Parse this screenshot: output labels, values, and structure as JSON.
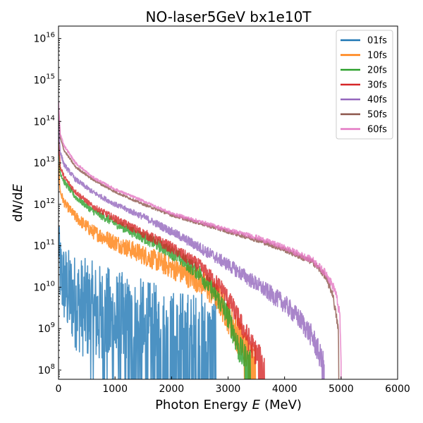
{
  "chart_data": {
    "type": "line",
    "title": "NO-laser5GeV bx1e10T",
    "xlabel": "Photon Energy",
    "xlabel_var": "E",
    "xlabel_unit": "(MeV)",
    "ylabel_prefix": "d",
    "ylabel_num": "N",
    "ylabel_mid": "/d",
    "ylabel_den": "E",
    "x_unit": "MeV",
    "xlim": [
      0,
      6000
    ],
    "xticks": [
      0,
      1000,
      2000,
      3000,
      4000,
      5000,
      6000
    ],
    "xtick_labels": [
      "0",
      "1000",
      "2000",
      "3000",
      "4000",
      "5000",
      "6000"
    ],
    "yscale": "log",
    "ylim": [
      60000000.0,
      2e+16
    ],
    "ytick_exponents": [
      8,
      9,
      10,
      11,
      12,
      13,
      14,
      15,
      16
    ],
    "ytick_base": "10",
    "grid": false,
    "legend_position": "top-right",
    "series": [
      {
        "name": "01fs",
        "color": "#1f77b4",
        "cutoff": 2800,
        "floor": 170000000.0,
        "noise": 0.8,
        "points": [
          [
            0,
            150000000000.0
          ],
          [
            20,
            30000000000.0
          ],
          [
            60,
            16000000000.0
          ],
          [
            150,
            8000000000.0
          ],
          [
            300,
            4500000000.0
          ],
          [
            500,
            2800000000.0
          ],
          [
            700,
            2000000000.0
          ],
          [
            1000,
            1200000000.0
          ],
          [
            1200,
            800000000.0
          ],
          [
            1500,
            500000000.0
          ],
          [
            1800,
            300000000.0
          ],
          [
            2000,
            220000000.0
          ],
          [
            2500,
            180000000.0
          ],
          [
            2800,
            170000000.0
          ]
        ]
      },
      {
        "name": "10fs",
        "color": "#ff7f0e",
        "cutoff": 3500,
        "floor": 120000000.0,
        "noise": 0.25,
        "points": [
          [
            0,
            10000000000000.0
          ],
          [
            30,
            2000000000000.0
          ],
          [
            100,
            1100000000000.0
          ],
          [
            300,
            500000000000.0
          ],
          [
            600,
            220000000000.0
          ],
          [
            1000,
            120000000000.0
          ],
          [
            1500,
            60000000000.0
          ],
          [
            2000,
            30000000000.0
          ],
          [
            2500,
            14000000000.0
          ],
          [
            2800,
            6000000000.0
          ],
          [
            3000,
            2000000000.0
          ],
          [
            3200,
            600000000.0
          ],
          [
            3300,
            300000000.0
          ],
          [
            3500,
            120000000.0
          ]
        ]
      },
      {
        "name": "20fs",
        "color": "#2ca02c",
        "cutoff": 3400,
        "floor": 120000000.0,
        "noise": 0.18,
        "points": [
          [
            0,
            30000000000000.0
          ],
          [
            30,
            6000000000000.0
          ],
          [
            100,
            3500000000000.0
          ],
          [
            300,
            1500000000000.0
          ],
          [
            600,
            700000000000.0
          ],
          [
            1000,
            350000000000.0
          ],
          [
            1500,
            160000000000.0
          ],
          [
            2000,
            70000000000.0
          ],
          [
            2500,
            22000000000.0
          ],
          [
            2800,
            6000000000.0
          ],
          [
            3000,
            2000000000.0
          ],
          [
            3100,
            800000000.0
          ],
          [
            3200,
            300000000.0
          ],
          [
            3400,
            120000000.0
          ]
        ]
      },
      {
        "name": "30fs",
        "color": "#d62728",
        "cutoff": 3650,
        "floor": 120000000.0,
        "noise": 0.16,
        "points": [
          [
            0,
            40000000000000.0
          ],
          [
            30,
            8000000000000.0
          ],
          [
            100,
            4500000000000.0
          ],
          [
            300,
            2000000000000.0
          ],
          [
            600,
            900000000000.0
          ],
          [
            1000,
            450000000000.0
          ],
          [
            1500,
            200000000000.0
          ],
          [
            2000,
            90000000000.0
          ],
          [
            2500,
            32000000000.0
          ],
          [
            2900,
            9000000000.0
          ],
          [
            3100,
            3000000000.0
          ],
          [
            3300,
            800000000.0
          ],
          [
            3500,
            250000000.0
          ],
          [
            3650,
            120000000.0
          ]
        ]
      },
      {
        "name": "40fs",
        "color": "#9467bd",
        "cutoff": 4700,
        "floor": 120000000.0,
        "noise": 0.15,
        "points": [
          [
            0,
            120000000000000.0
          ],
          [
            30,
            18000000000000.0
          ],
          [
            100,
            9000000000000.0
          ],
          [
            300,
            4000000000000.0
          ],
          [
            600,
            2000000000000.0
          ],
          [
            1000,
            1000000000000.0
          ],
          [
            1500,
            500000000000.0
          ],
          [
            2000,
            220000000000.0
          ],
          [
            2500,
            90000000000.0
          ],
          [
            3000,
            35000000000.0
          ],
          [
            3500,
            12000000000.0
          ],
          [
            4000,
            4000000000.0
          ],
          [
            4300,
            1500000000.0
          ],
          [
            4500,
            600000000.0
          ],
          [
            4700,
            120000000.0
          ]
        ]
      },
      {
        "name": "50fs",
        "color": "#8c564b",
        "cutoff": 4960,
        "floor": 120000000.0,
        "noise": 0.07,
        "points": [
          [
            0,
            200000000000000.0
          ],
          [
            30,
            40000000000000.0
          ],
          [
            100,
            20000000000000.0
          ],
          [
            300,
            8000000000000.0
          ],
          [
            600,
            4000000000000.0
          ],
          [
            1000,
            2000000000000.0
          ],
          [
            1500,
            1000000000000.0
          ],
          [
            2000,
            550000000000.0
          ],
          [
            2500,
            350000000000.0
          ],
          [
            3000,
            220000000000.0
          ],
          [
            3500,
            140000000000.0
          ],
          [
            4000,
            80000000000.0
          ],
          [
            4500,
            40000000000.0
          ],
          [
            4700,
            20000000000.0
          ],
          [
            4850,
            7000000000.0
          ],
          [
            4950,
            1000000000.0
          ],
          [
            4960,
            120000000.0
          ]
        ]
      },
      {
        "name": "60fs",
        "color": "#e377c2",
        "cutoff": 5000,
        "floor": 120000000.0,
        "noise": 0.08,
        "points": [
          [
            0,
            300000000000000.0
          ],
          [
            30,
            50000000000000.0
          ],
          [
            100,
            26000000000000.0
          ],
          [
            300,
            10000000000000.0
          ],
          [
            600,
            4500000000000.0
          ],
          [
            1000,
            2300000000000.0
          ],
          [
            1500,
            1200000000000.0
          ],
          [
            2000,
            600000000000.0
          ],
          [
            2500,
            380000000000.0
          ],
          [
            3000,
            240000000000.0
          ],
          [
            3500,
            160000000000.0
          ],
          [
            4000,
            90000000000.0
          ],
          [
            4500,
            45000000000.0
          ],
          [
            4750,
            20000000000.0
          ],
          [
            4900,
            8000000000.0
          ],
          [
            4980,
            2000000000.0
          ],
          [
            5000,
            120000000.0
          ]
        ]
      }
    ]
  }
}
